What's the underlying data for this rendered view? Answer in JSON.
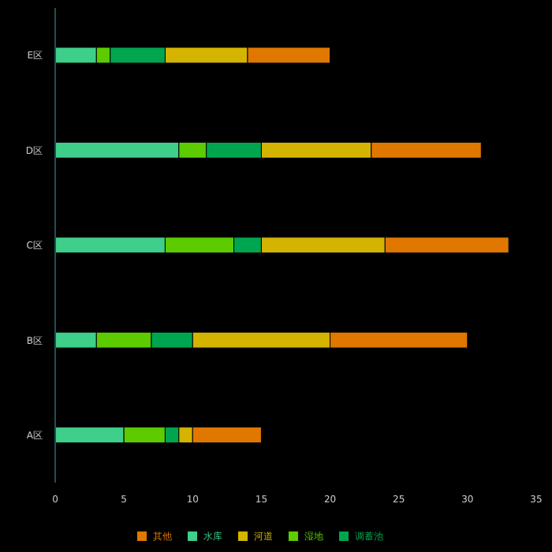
{
  "chart_data": {
    "type": "bar",
    "orientation": "horizontal",
    "stacked": true,
    "categories": [
      "E区",
      "D区",
      "C区",
      "B区",
      "A区"
    ],
    "series": [
      {
        "name": "水库",
        "color": "#3ecf8a",
        "values": [
          3,
          9,
          8,
          3,
          5
        ]
      },
      {
        "name": "湿地",
        "color": "#5ccc00",
        "values": [
          1,
          2,
          5,
          4,
          3
        ]
      },
      {
        "name": "调蓄池",
        "color": "#00a64f",
        "values": [
          4,
          4,
          2,
          3,
          1
        ]
      },
      {
        "name": "河道",
        "color": "#d4b400",
        "values": [
          6,
          8,
          9,
          10,
          1
        ]
      },
      {
        "name": "其他",
        "color": "#e07800",
        "values": [
          6,
          8,
          9,
          10,
          5
        ]
      }
    ],
    "xlim": [
      0,
      35
    ],
    "xticks": [
      0,
      5,
      10,
      15,
      20,
      25,
      30,
      35
    ],
    "grid": false,
    "legend": "bottom"
  }
}
